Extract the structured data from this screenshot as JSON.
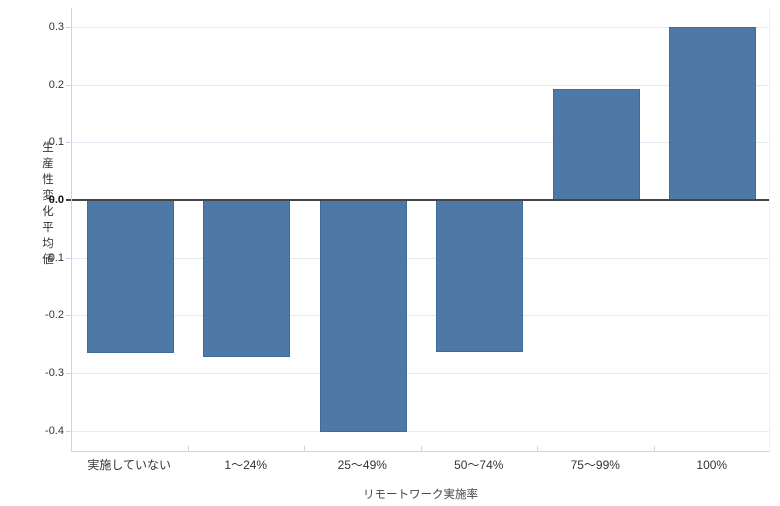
{
  "chart_data": {
    "type": "bar",
    "title": "",
    "categories": [
      "実施していない",
      "1〜24%",
      "25〜49%",
      "50〜74%",
      "75〜99%",
      "100%"
    ],
    "values": [
      -0.265,
      -0.273,
      -0.403,
      -0.264,
      0.193,
      0.3
    ],
    "xlabel": "リモートワーク実施率",
    "ylabel": "生産性変化平均値",
    "yticks": [
      0.3,
      0.2,
      0.1,
      0.0,
      -0.1,
      -0.2,
      -0.3,
      -0.4
    ],
    "ylim": [
      -0.437,
      0.333
    ],
    "grid": true,
    "legend": "none",
    "colors": {
      "bar": "#4e79a7",
      "bar_border": "#3f6b9a",
      "gridline": "#e4eaf4",
      "axis_border": "#c9d5e8",
      "zero_line": "#444444",
      "tick_text": "#333333",
      "axis_title_text": "#484848"
    }
  }
}
